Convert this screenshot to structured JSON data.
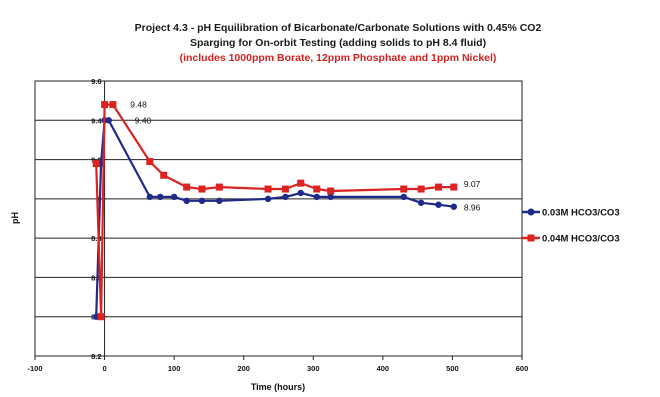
{
  "chart_data": {
    "type": "line",
    "title": [
      "Project 4.3 - pH Equilibration of Bicarbonate/Carbonate Solutions with 0.45% CO2",
      "Sparging for On-orbit Testing (adding solids to pH 8.4 fluid)"
    ],
    "subtitle": "(includes 1000ppm Borate, 12ppm Phosphate and 1ppm Nickel)",
    "xlabel": "Time (hours)",
    "ylabel": "pH",
    "xlim": [
      -100,
      600
    ],
    "ylim": [
      8.2,
      9.6
    ],
    "x_ticks": [
      "-100",
      "0",
      "100",
      "200",
      "300",
      "400",
      "500",
      "600"
    ],
    "y_ticks": [
      "8.2",
      "8.4",
      "8.6",
      "8.8",
      "9",
      "9.2",
      "9.4",
      "9.6"
    ],
    "grid": "horizontal",
    "legend_position": "right",
    "series": [
      {
        "name": "0.03M HCO3/CO3",
        "color": "#1f2a8a",
        "marker": "circle",
        "points": [
          [
            -12,
            8.4
          ],
          [
            -5,
            9.18
          ],
          [
            0,
            9.4
          ],
          [
            6,
            9.4
          ],
          [
            65,
            9.01
          ],
          [
            80,
            9.01
          ],
          [
            100,
            9.01
          ],
          [
            118,
            8.99
          ],
          [
            140,
            8.99
          ],
          [
            165,
            8.99
          ],
          [
            235,
            9.0
          ],
          [
            260,
            9.01
          ],
          [
            282,
            9.03
          ],
          [
            305,
            9.01
          ],
          [
            325,
            9.01
          ],
          [
            430,
            9.01
          ],
          [
            455,
            8.98
          ],
          [
            480,
            8.97
          ],
          [
            502,
            8.96
          ]
        ]
      },
      {
        "name": "0.04M HCO3/CO3",
        "color": "#dd2222",
        "marker": "square",
        "points": [
          [
            -12,
            9.18
          ],
          [
            -5,
            8.4
          ],
          [
            0,
            9.48
          ],
          [
            12,
            9.48
          ],
          [
            65,
            9.19
          ],
          [
            85,
            9.12
          ],
          [
            118,
            9.06
          ],
          [
            140,
            9.05
          ],
          [
            165,
            9.06
          ],
          [
            235,
            9.05
          ],
          [
            260,
            9.05
          ],
          [
            282,
            9.08
          ],
          [
            305,
            9.05
          ],
          [
            325,
            9.04
          ],
          [
            430,
            9.05
          ],
          [
            455,
            9.05
          ],
          [
            480,
            9.06
          ],
          [
            502,
            9.06
          ]
        ]
      }
    ],
    "annotations": [
      "9.48",
      "9.40",
      "9.07",
      "8.96"
    ]
  }
}
